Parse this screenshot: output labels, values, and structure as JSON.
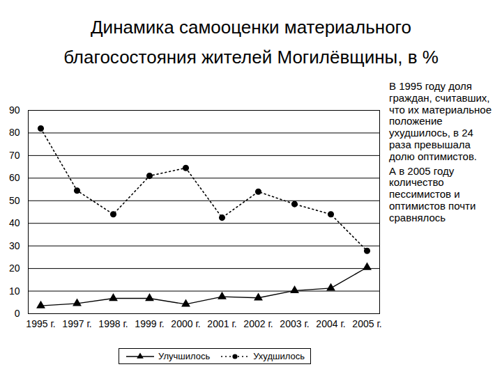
{
  "chart_data": {
    "type": "line",
    "title": "Динамика самооценки материального благосостояния жителей Могилёвщины, в %",
    "annotations": [
      "В 1995 году доля граждан, считавших, что их материальное положение ухудшилось, в 24 раза превышала долю оптимистов.",
      "А в 2005 году количество пессимистов и оптимистов почти сравнялось"
    ],
    "categories": [
      "1995 г.",
      "1997 г.",
      "1998 г.",
      "1999 г.",
      "2000 г.",
      "2001 г.",
      "2002 г.",
      "2003 г.",
      "2004 г.",
      "2005 г."
    ],
    "series": [
      {
        "name": "Улучшилось",
        "color": "#000000",
        "marker": "triangle",
        "line_style": "solid",
        "values": [
          3.5,
          4.5,
          6.8,
          6.8,
          4.2,
          7.5,
          7,
          10.2,
          11.3,
          20.5
        ]
      },
      {
        "name": "Ухудшилось",
        "color": "#000000",
        "marker": "circle",
        "line_style": "dotted",
        "values": [
          82,
          54.5,
          44,
          61,
          64.5,
          42.5,
          54,
          48.5,
          44,
          27.8
        ]
      }
    ],
    "ylim": [
      0,
      90
    ],
    "yticks": [
      0,
      10,
      20,
      30,
      40,
      50,
      60,
      70,
      80,
      90
    ],
    "grid": true,
    "legend": "bottom"
  }
}
